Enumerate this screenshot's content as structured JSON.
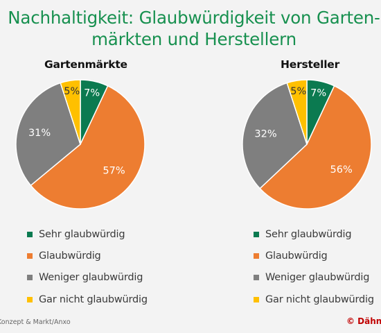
{
  "title_line1": "Nachhaltigkeit: Glaubwürdigkeit von Garten-",
  "title_line2": "märkten und Herstellern",
  "chart_data": [
    {
      "type": "pie",
      "title": "Gartenmärkte",
      "categories": [
        "Sehr glaubwürdig",
        "Glaubwürdig",
        "Weniger glaubwürdig",
        "Gar nicht glaubwürdig"
      ],
      "values": [
        7,
        57,
        31,
        5
      ],
      "labels": [
        "7%",
        "57%",
        "31%",
        "5%"
      ],
      "colors": [
        "#0b7a50",
        "#ed7d31",
        "#7f7f7f",
        "#ffc000"
      ],
      "label_colors": [
        "#ffffff",
        "#ffffff",
        "#ffffff",
        "#333333"
      ],
      "legend_position": "bottom"
    },
    {
      "type": "pie",
      "title": "Hersteller",
      "categories": [
        "Sehr glaubwürdig",
        "Glaubwürdig",
        "Weniger glaubwürdig",
        "Gar nicht glaubwürdig"
      ],
      "values": [
        7,
        56,
        32,
        5
      ],
      "labels": [
        "7%",
        "56%",
        "32%",
        "5%"
      ],
      "colors": [
        "#0b7a50",
        "#ed7d31",
        "#7f7f7f",
        "#ffc000"
      ],
      "label_colors": [
        "#ffffff",
        "#ffffff",
        "#ffffff",
        "#333333"
      ],
      "legend_position": "bottom"
    }
  ],
  "source": "Konzept & Markt/Anxo",
  "brand": "© Dähne"
}
